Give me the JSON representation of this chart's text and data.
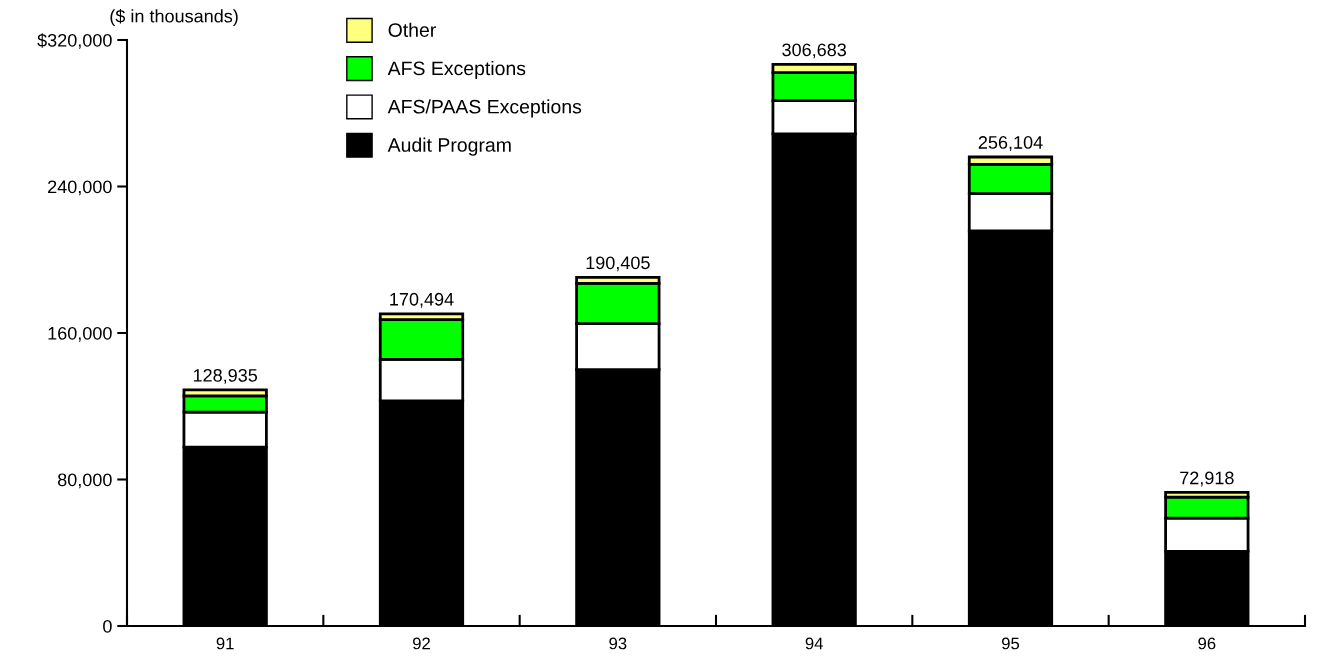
{
  "chart_data": {
    "type": "bar",
    "stacked": true,
    "ylabel": "($ in thousands)",
    "categories": [
      "91",
      "92",
      "93",
      "94",
      "95",
      "96"
    ],
    "series": [
      {
        "name": "Audit Program",
        "color": "#000000",
        "values": [
          97635,
          122894,
          140005,
          268783,
          215704,
          40718
        ]
      },
      {
        "name": "AFS/PAAS Exceptions",
        "color": "#ffffff",
        "values": [
          19100,
          22700,
          25100,
          18100,
          20400,
          18200
        ]
      },
      {
        "name": "AFS Exceptions",
        "color": "#00ff00",
        "values": [
          8900,
          21700,
          22000,
          15300,
          16000,
          11500
        ]
      },
      {
        "name": "Other",
        "color": "#ffff80",
        "values": [
          3300,
          3200,
          3300,
          4500,
          4000,
          2500
        ]
      }
    ],
    "totals": [
      "128,935",
      "170,494",
      "190,405",
      "306,683",
      "256,104",
      "72,918"
    ],
    "ylim": [
      0,
      320000
    ],
    "yticks": [
      0,
      {
        "value": 80000,
        "label": "80,000"
      },
      {
        "value": 160000,
        "label": "160,000"
      },
      {
        "value": 240000,
        "label": "240,000"
      },
      {
        "value": 320000,
        "label": "$320,000"
      }
    ],
    "grid": false,
    "legend": "top left"
  }
}
